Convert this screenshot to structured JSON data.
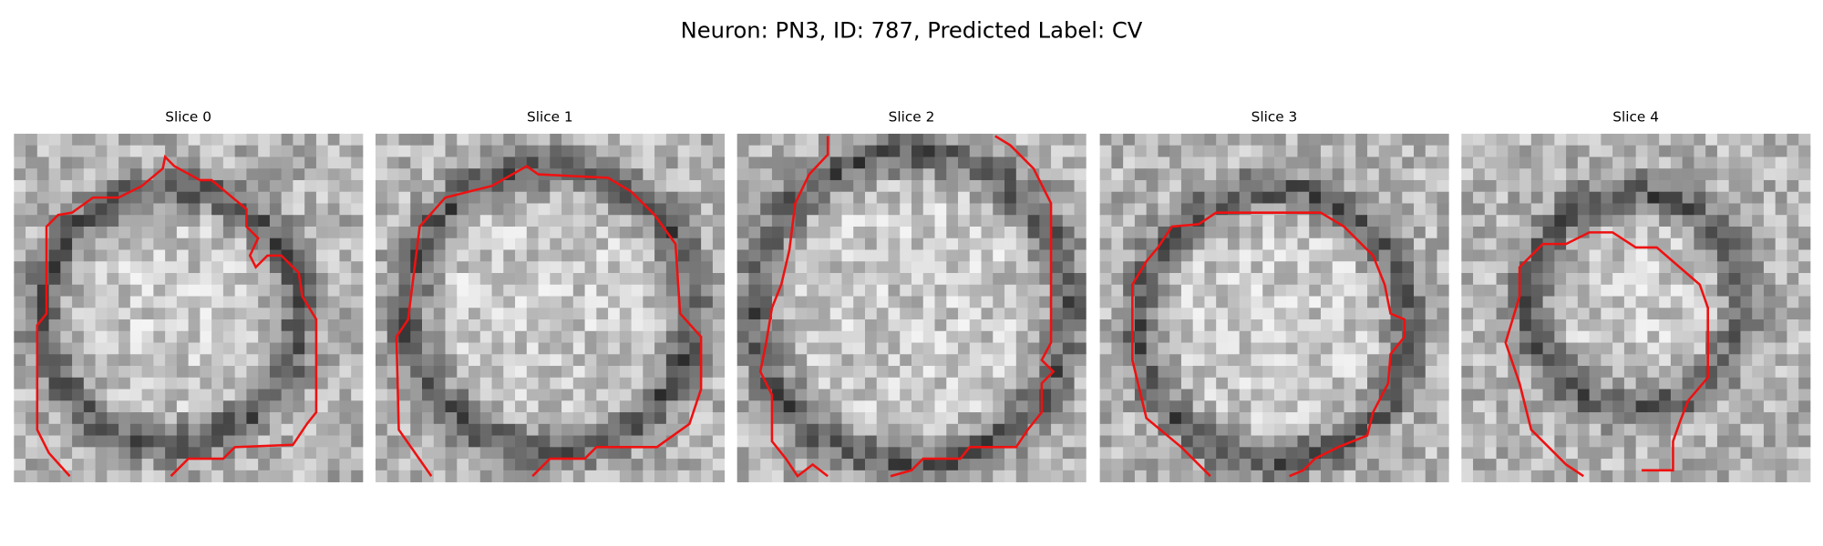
{
  "title": "Neuron: PN3, ID: 787, Predicted Label: CV",
  "panels": [
    {
      "title": "Slice 0"
    },
    {
      "title": "Slice 1"
    },
    {
      "title": "Slice 2"
    },
    {
      "title": "Slice 3"
    },
    {
      "title": "Slice 4"
    }
  ]
}
